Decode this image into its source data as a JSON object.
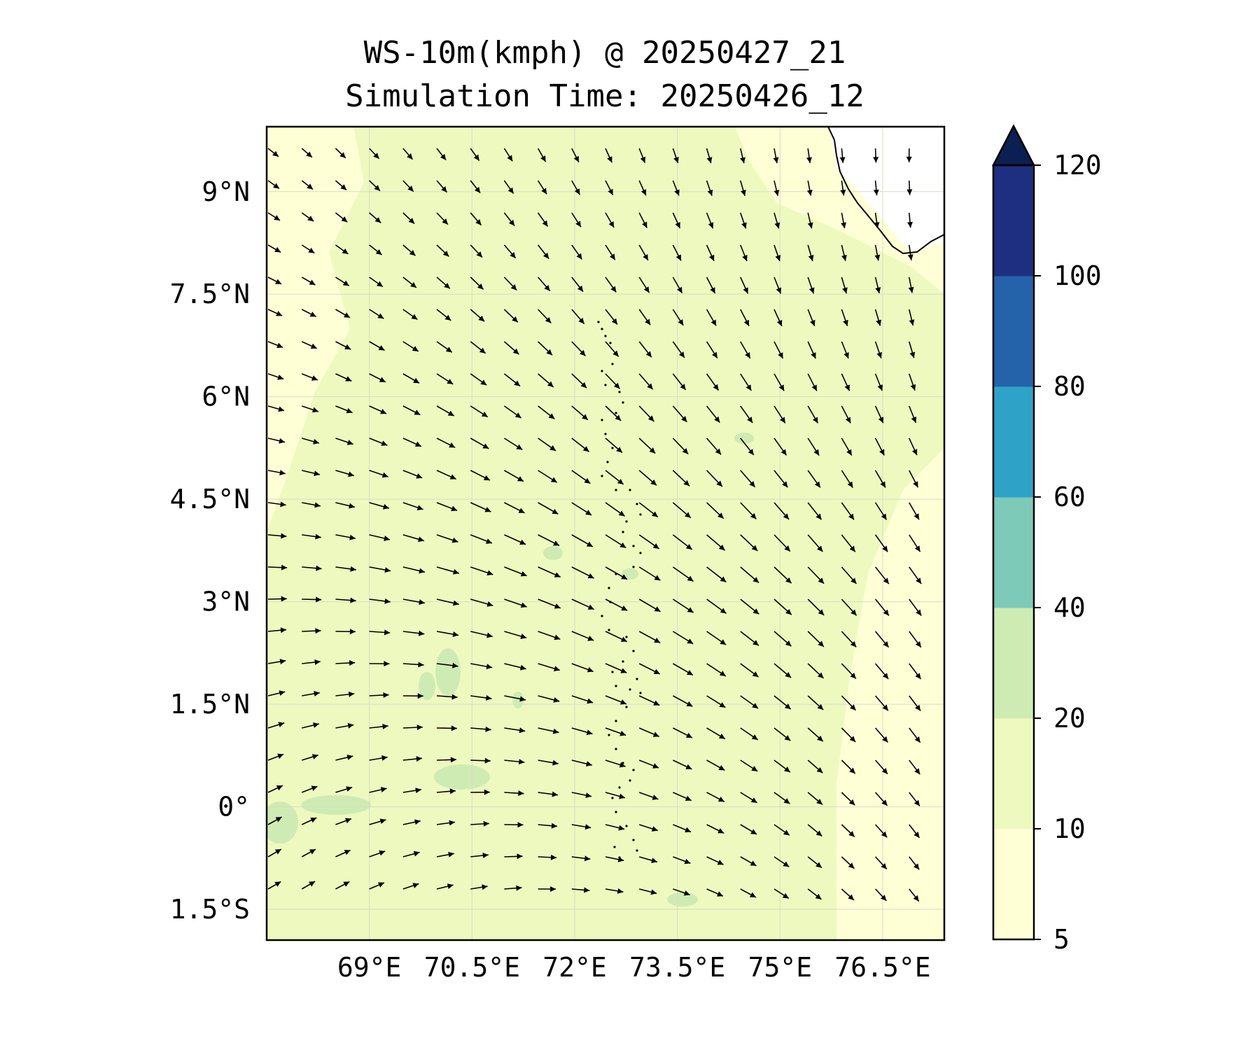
{
  "title": "WS-10m(kmph) @ 20250427_21",
  "subtitle": "Simulation Time: 20250426_12",
  "map": {
    "lon_range": [
      67.5,
      77.4
    ],
    "lat_range": [
      -1.95,
      9.95
    ],
    "lon_ticks": [
      {
        "value": 69.0,
        "label": "69°E"
      },
      {
        "value": 70.5,
        "label": "70.5°E"
      },
      {
        "value": 72.0,
        "label": "72°E"
      },
      {
        "value": 73.5,
        "label": "73.5°E"
      },
      {
        "value": 75.0,
        "label": "75°E"
      },
      {
        "value": 76.5,
        "label": "76.5°E"
      }
    ],
    "lat_ticks": [
      {
        "value": 9.0,
        "label": "9°N"
      },
      {
        "value": 7.5,
        "label": "7.5°N"
      },
      {
        "value": 6.0,
        "label": "6°N"
      },
      {
        "value": 4.5,
        "label": "4.5°N"
      },
      {
        "value": 3.0,
        "label": "3°N"
      },
      {
        "value": 1.5,
        "label": "1.5°N"
      },
      {
        "value": 0.0,
        "label": "0°"
      },
      {
        "value": -1.5,
        "label": "1.5°S"
      }
    ],
    "gridlines": true
  },
  "colorbar": {
    "levels": [
      5,
      10,
      20,
      40,
      60,
      80,
      100,
      120
    ],
    "tick_labels": [
      "5",
      "10",
      "20",
      "40",
      "60",
      "80",
      "100",
      "120"
    ],
    "colors": [
      "#ffffd6",
      "#eef9bf",
      "#cfebb4",
      "#7dcab9",
      "#2fa2c7",
      "#2462aa",
      "#1e2e80"
    ],
    "extend_color": "#0c1f52",
    "extend": "max"
  },
  "colors": {
    "base_speed_fill": "#eef9bf",
    "light_fill": "#ffffd6",
    "patch_fill": "#cfebb4",
    "arrow": "#000000",
    "coast": "#000000"
  }
}
